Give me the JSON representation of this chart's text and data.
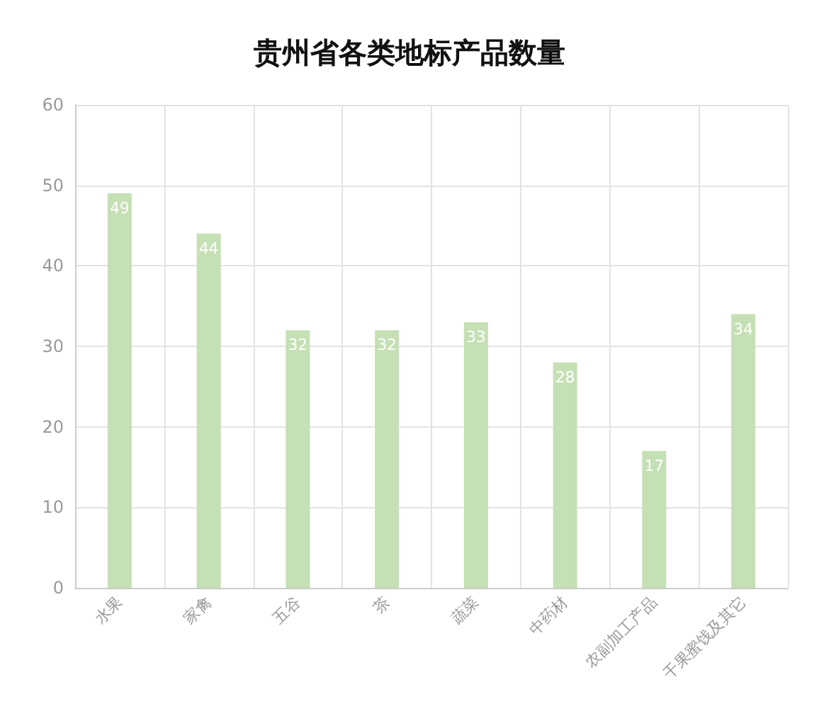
{
  "chart_data": {
    "type": "bar",
    "title": "贵州省各类地标产品数量",
    "categories": [
      "水果",
      "家禽",
      "五谷",
      "茶",
      "蔬菜",
      "中药材",
      "农副加工产品",
      "干果蜜饯及其它"
    ],
    "values": [
      49,
      44,
      32,
      32,
      33,
      28,
      17,
      34
    ],
    "color": "#c5e0b4",
    "ylim": [
      0,
      60
    ],
    "yticks": [
      0,
      10,
      20,
      30,
      40,
      50,
      60
    ],
    "grid": true,
    "data_labels": true
  }
}
